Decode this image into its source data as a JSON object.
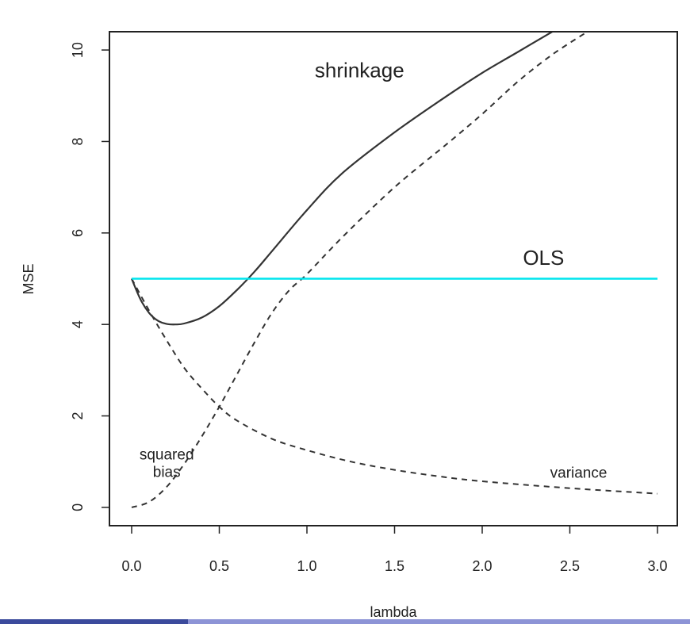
{
  "chart_data": {
    "type": "line",
    "xlabel": "lambda",
    "ylabel": "MSE",
    "xlim": [
      0,
      3
    ],
    "ylim": [
      -0.4,
      10.4
    ],
    "x_ticks": [
      0.0,
      0.5,
      1.0,
      1.5,
      2.0,
      2.5,
      3.0
    ],
    "x_tick_labels": [
      "0.0",
      "0.5",
      "1.0",
      "1.5",
      "2.0",
      "2.5",
      "3.0"
    ],
    "y_ticks": [
      0,
      2,
      4,
      6,
      8,
      10
    ],
    "y_tick_labels": [
      "0",
      "2",
      "4",
      "6",
      "8",
      "10"
    ],
    "grid": false,
    "series": [
      {
        "name": "shrinkage",
        "style": "solid",
        "color": "#333333",
        "x": [
          0,
          0.05,
          0.1,
          0.15,
          0.2,
          0.25,
          0.3,
          0.4,
          0.5,
          0.6,
          0.7,
          0.8,
          1.0,
          1.2,
          1.5,
          1.8,
          2.0,
          2.2,
          2.4
        ],
        "y": [
          5.0,
          4.55,
          4.25,
          4.08,
          4.01,
          4.0,
          4.02,
          4.15,
          4.4,
          4.75,
          5.15,
          5.6,
          6.5,
          7.3,
          8.2,
          9.0,
          9.5,
          9.95,
          10.4
        ]
      },
      {
        "name": "squared bias",
        "style": "dashed",
        "color": "#333333",
        "x": [
          0,
          0.1,
          0.2,
          0.3,
          0.4,
          0.5,
          0.6,
          0.7,
          0.8,
          0.9,
          1.0,
          1.2,
          1.5,
          1.8,
          2.0,
          2.2,
          2.4,
          2.6
        ],
        "y": [
          0.0,
          0.12,
          0.45,
          0.95,
          1.55,
          2.2,
          2.9,
          3.6,
          4.25,
          4.75,
          5.1,
          5.9,
          7.0,
          7.95,
          8.6,
          9.3,
          9.9,
          10.4
        ]
      },
      {
        "name": "variance",
        "style": "dashed",
        "color": "#333333",
        "x": [
          0,
          0.1,
          0.2,
          0.3,
          0.4,
          0.5,
          0.6,
          0.8,
          1.0,
          1.25,
          1.5,
          1.75,
          2.0,
          2.5,
          3.0
        ],
        "y": [
          5.0,
          4.3,
          3.65,
          3.05,
          2.6,
          2.2,
          1.9,
          1.5,
          1.25,
          1.0,
          0.82,
          0.68,
          0.57,
          0.42,
          0.3
        ]
      },
      {
        "name": "OLS",
        "style": "solid",
        "color": "#00e5ee",
        "x": [
          0,
          3
        ],
        "y": [
          5,
          5
        ]
      }
    ],
    "annotations": [
      {
        "id": "shrinkage",
        "lines": [
          "shrinkage"
        ],
        "x": 1.3,
        "y": 9.4,
        "size": "big"
      },
      {
        "id": "ols",
        "lines": [
          "OLS"
        ],
        "x": 2.35,
        "y": 5.3,
        "size": "big"
      },
      {
        "id": "squared-bias",
        "lines": [
          "squared",
          "bias"
        ],
        "x": 0.2,
        "y": 1.05,
        "size": "small"
      },
      {
        "id": "variance",
        "lines": [
          "variance"
        ],
        "x": 2.55,
        "y": 0.65,
        "size": "small"
      }
    ]
  },
  "colors": {
    "axis": "#222222",
    "line": "#333333",
    "ols": "#00e5ee",
    "bottom_bar_dark": "#3b4a9c",
    "bottom_bar_light": "#8d94d6"
  }
}
